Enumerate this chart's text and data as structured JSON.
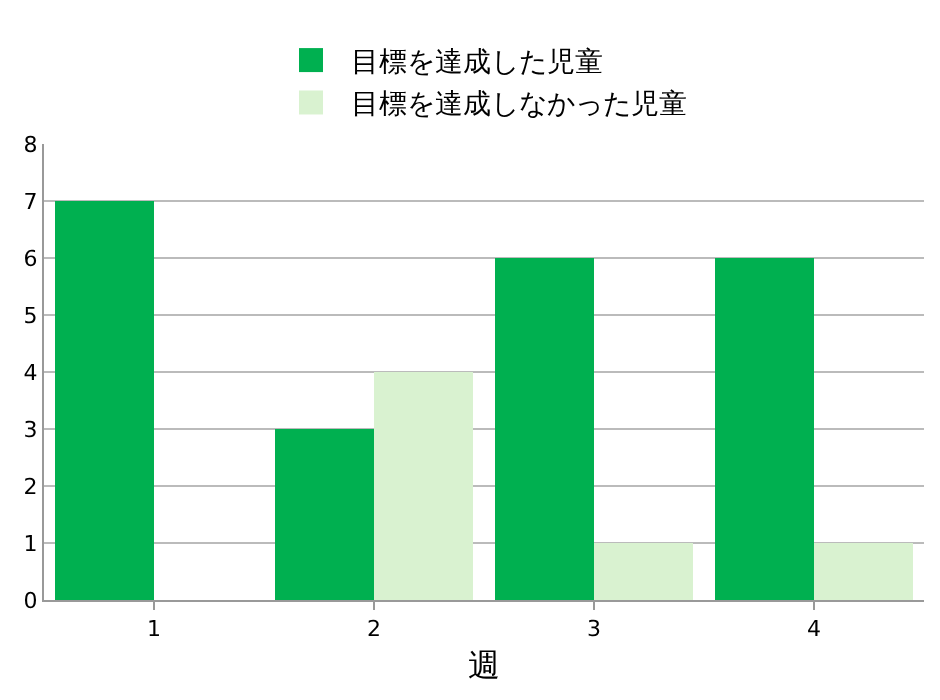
{
  "chart_data": {
    "type": "bar",
    "xlabel": "週",
    "categories": [
      "1",
      "2",
      "3",
      "4"
    ],
    "series": [
      {
        "name": "目標を達成した児童",
        "color": "#00b050",
        "values": [
          7,
          3,
          6,
          6
        ]
      },
      {
        "name": "目標を達成しなかった児童",
        "color": "#d9f2d0",
        "values": [
          0,
          4,
          1,
          1
        ]
      }
    ],
    "ylim": [
      0,
      8
    ],
    "yticks": [
      0,
      1,
      2,
      3,
      4,
      5,
      6,
      7,
      8
    ],
    "grid": "y",
    "legend": "top"
  }
}
